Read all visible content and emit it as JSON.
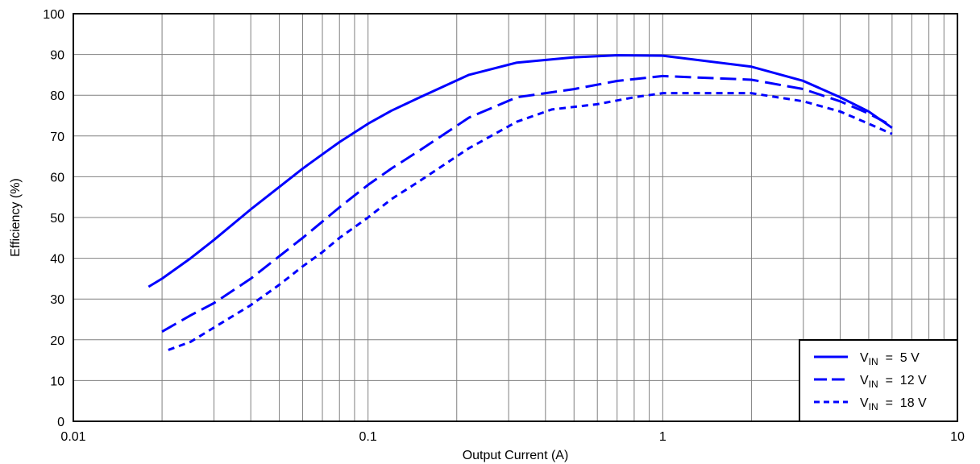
{
  "chart_data": {
    "type": "line",
    "xscale": "log",
    "xlim": [
      0.01,
      10
    ],
    "ylim": [
      0,
      100
    ],
    "xlabel": "Output Current (A)",
    "ylabel": "Efficiency (%)",
    "x_ticks": [
      {
        "value": 0.01,
        "label": "0.01"
      },
      {
        "value": 0.1,
        "label": "0.1"
      },
      {
        "value": 1,
        "label": "1"
      },
      {
        "value": 10,
        "label": "10"
      }
    ],
    "y_ticks": [
      0,
      10,
      20,
      30,
      40,
      50,
      60,
      70,
      80,
      90,
      100
    ],
    "grid": true,
    "legend_position": "bottom-right",
    "series": [
      {
        "name": "5 V",
        "legend_prefix": "V",
        "legend_sub": "IN",
        "legend_eq": "=",
        "color": "#0000ff",
        "dash": "solid",
        "points": [
          [
            0.018,
            33
          ],
          [
            0.02,
            35
          ],
          [
            0.025,
            40
          ],
          [
            0.03,
            44.5
          ],
          [
            0.04,
            52
          ],
          [
            0.05,
            57.5
          ],
          [
            0.06,
            62
          ],
          [
            0.07,
            65.5
          ],
          [
            0.08,
            68.5
          ],
          [
            0.1,
            73
          ],
          [
            0.12,
            76.2
          ],
          [
            0.15,
            79.5
          ],
          [
            0.22,
            85
          ],
          [
            0.32,
            88
          ],
          [
            0.5,
            89.3
          ],
          [
            0.7,
            89.8
          ],
          [
            1,
            89.7
          ],
          [
            2,
            87
          ],
          [
            3,
            83.5
          ],
          [
            4,
            79.5
          ],
          [
            5,
            76
          ],
          [
            6,
            72
          ]
        ]
      },
      {
        "name": "12 V",
        "legend_prefix": "V",
        "legend_sub": "IN",
        "legend_eq": "=",
        "color": "#0000ff",
        "dash": "dashed",
        "points": [
          [
            0.02,
            22
          ],
          [
            0.025,
            26
          ],
          [
            0.03,
            29
          ],
          [
            0.04,
            35
          ],
          [
            0.05,
            40.5
          ],
          [
            0.06,
            45
          ],
          [
            0.07,
            49
          ],
          [
            0.08,
            52.5
          ],
          [
            0.1,
            58
          ],
          [
            0.12,
            62
          ],
          [
            0.15,
            66.5
          ],
          [
            0.22,
            74.5
          ],
          [
            0.32,
            79.5
          ],
          [
            0.5,
            81.5
          ],
          [
            0.7,
            83.5
          ],
          [
            1,
            84.7
          ],
          [
            2,
            83.8
          ],
          [
            3,
            81.5
          ],
          [
            4,
            78.5
          ],
          [
            5,
            75.5
          ],
          [
            6,
            72.5
          ]
        ]
      },
      {
        "name": "18 V",
        "legend_prefix": "V",
        "legend_sub": "IN",
        "legend_eq": "=",
        "color": "#0000ff",
        "dash": "dotted",
        "points": [
          [
            0.021,
            17.5
          ],
          [
            0.025,
            19.5
          ],
          [
            0.03,
            23
          ],
          [
            0.04,
            28.5
          ],
          [
            0.05,
            33.5
          ],
          [
            0.06,
            38
          ],
          [
            0.07,
            41.5
          ],
          [
            0.08,
            45
          ],
          [
            0.1,
            50
          ],
          [
            0.12,
            54.5
          ],
          [
            0.15,
            59
          ],
          [
            0.22,
            67
          ],
          [
            0.32,
            73.5
          ],
          [
            0.42,
            76.5
          ],
          [
            0.6,
            77.8
          ],
          [
            0.8,
            79.5
          ],
          [
            1,
            80.5
          ],
          [
            2,
            80.5
          ],
          [
            3,
            78.5
          ],
          [
            4,
            76
          ],
          [
            5,
            73
          ],
          [
            6,
            70.5
          ]
        ]
      }
    ]
  }
}
